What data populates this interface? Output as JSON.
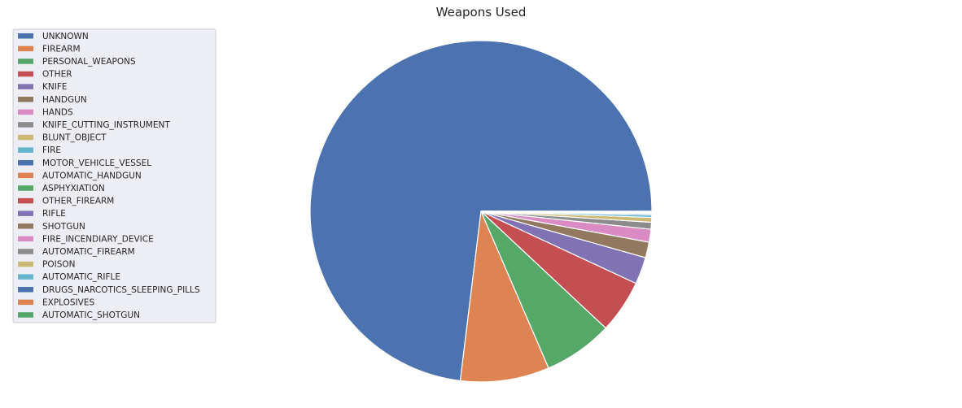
{
  "chart_data": {
    "type": "pie",
    "title": "Weapons Used",
    "legend_placement": "upper-left",
    "categories": [
      "UNKNOWN",
      "FIREARM",
      "PERSONAL_WEAPONS",
      "OTHER",
      "KNIFE",
      "HANDGUN",
      "HANDS",
      "KNIFE_CUTTING_INSTRUMENT",
      "BLUNT_OBJECT",
      "FIRE",
      "MOTOR_VEHICLE_VESSEL",
      "AUTOMATIC_HANDGUN",
      "ASPHYXIATION",
      "OTHER_FIREARM",
      "RIFLE",
      "SHOTGUN",
      "FIRE_INCENDIARY_DEVICE",
      "AUTOMATIC_FIREARM",
      "POISON",
      "AUTOMATIC_RIFLE",
      "DRUGS_NARCOTICS_SLEEPING_PILLS",
      "EXPLOSIVES",
      "AUTOMATIC_SHOTGUN"
    ],
    "values": [
      73.06,
      8.41,
      6.54,
      5.05,
      2.56,
      1.48,
      1.22,
      0.65,
      0.45,
      0.25,
      0.12,
      0.05,
      0.04,
      0.03,
      0.02,
      0.02,
      0.01,
      0.01,
      0.01,
      0.005,
      0.005,
      0.002,
      0.002
    ],
    "colors": [
      "#4c72b0",
      "#dd8452",
      "#55a868",
      "#c44e52",
      "#8172b3",
      "#937860",
      "#da8bc3",
      "#8c8c8c",
      "#ccb974",
      "#64b5cd",
      "#4c72b0",
      "#dd8452",
      "#55a868",
      "#c44e52",
      "#8172b3",
      "#937860",
      "#da8bc3",
      "#8c8c8c",
      "#ccb974",
      "#64b5cd",
      "#4c72b0",
      "#dd8452",
      "#55a868"
    ]
  }
}
